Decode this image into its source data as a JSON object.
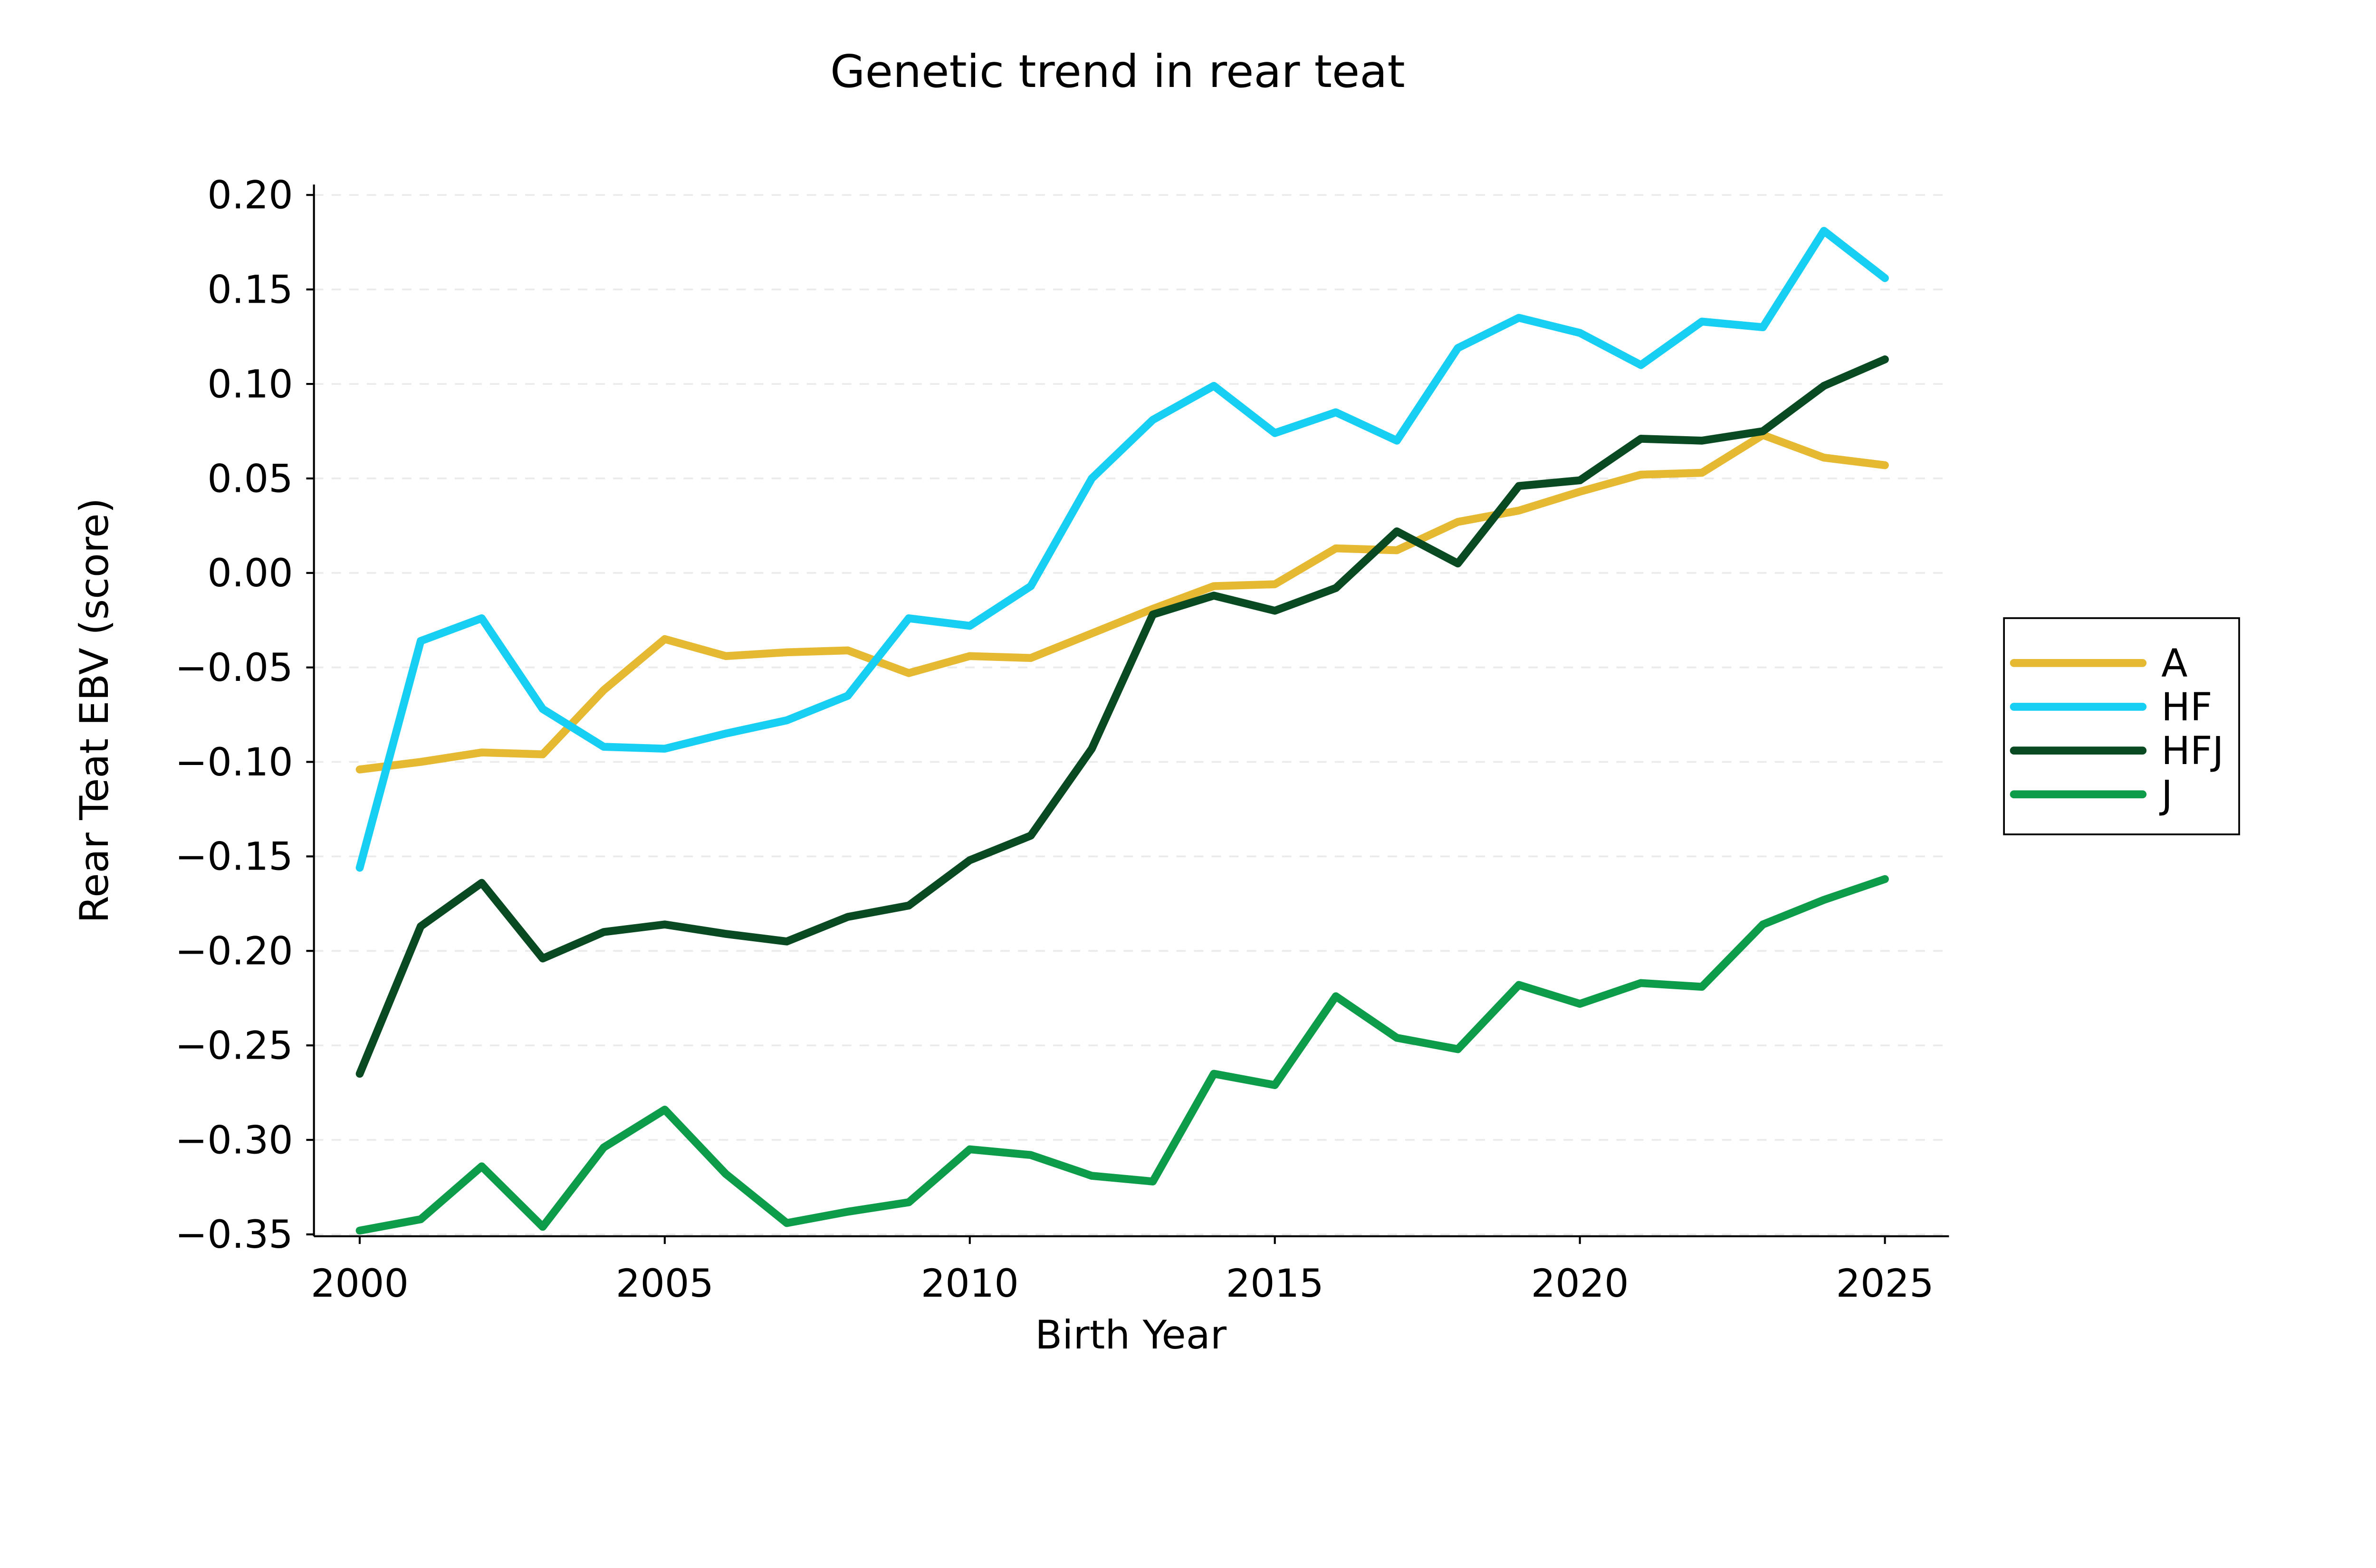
{
  "title": "Genetic trend in rear teat",
  "chart_data": {
    "type": "line",
    "title": "Genetic trend in rear teat",
    "xlabel": "Birth Year",
    "ylabel": "Rear Teat EBV (score)",
    "grid": "horizontal-dashed",
    "legend_position": "right-outside",
    "background_color": "#ffffff",
    "axis_color": "#000000",
    "grid_color": "#ebebeb",
    "xlim": [
      1999.25,
      2026.05
    ],
    "ylim": [
      -0.351,
      0.2055
    ],
    "x_ticks": [
      2000,
      2005,
      2010,
      2015,
      2020,
      2025
    ],
    "x_tick_labels": [
      "2000",
      "2005",
      "2010",
      "2015",
      "2020",
      "2025"
    ],
    "y_ticks": [
      0.2,
      0.15,
      0.1,
      0.05,
      0.0,
      -0.05,
      -0.1,
      -0.15,
      -0.2,
      -0.25,
      -0.3,
      -0.35
    ],
    "y_tick_labels": [
      "0.20",
      "0.15",
      "0.10",
      "0.05",
      "0.00",
      "−0.05",
      "−0.10",
      "−0.15",
      "−0.20",
      "−0.25",
      "−0.30",
      "−0.35"
    ],
    "x": [
      2000,
      2001,
      2002,
      2003,
      2004,
      2005,
      2006,
      2007,
      2008,
      2009,
      2010,
      2011,
      2012,
      2013,
      2014,
      2015,
      2016,
      2017,
      2018,
      2019,
      2020,
      2021,
      2022,
      2023,
      2024,
      2025
    ],
    "series": [
      {
        "name": "A",
        "color": "#E6B932",
        "values": [
          -0.104,
          -0.1,
          -0.095,
          -0.096,
          -0.062,
          -0.035,
          -0.044,
          -0.042,
          -0.041,
          -0.053,
          -0.044,
          -0.045,
          -0.032,
          -0.019,
          -0.007,
          -0.006,
          0.013,
          0.012,
          0.027,
          0.033,
          0.043,
          0.052,
          0.053,
          0.073,
          0.061,
          0.057
        ]
      },
      {
        "name": "HF",
        "color": "#17CFF2",
        "values": [
          -0.156,
          -0.036,
          -0.024,
          -0.072,
          -0.092,
          -0.093,
          -0.085,
          -0.078,
          -0.065,
          -0.024,
          -0.028,
          -0.007,
          0.05,
          0.081,
          0.099,
          0.074,
          0.085,
          0.07,
          0.119,
          0.135,
          0.127,
          0.11,
          0.133,
          0.13,
          0.181,
          0.156
        ]
      },
      {
        "name": "HFJ",
        "color": "#094A22",
        "values": [
          -0.265,
          -0.187,
          -0.164,
          -0.204,
          -0.19,
          -0.186,
          -0.191,
          -0.195,
          -0.182,
          -0.176,
          -0.152,
          -0.139,
          -0.093,
          -0.022,
          -0.012,
          -0.02,
          -0.008,
          0.022,
          0.005,
          0.046,
          0.049,
          0.071,
          0.07,
          0.075,
          0.099,
          0.113
        ]
      },
      {
        "name": "J",
        "color": "#0C9C4A",
        "values": [
          -0.348,
          -0.342,
          -0.314,
          -0.346,
          -0.304,
          -0.284,
          -0.318,
          -0.344,
          -0.338,
          -0.333,
          -0.305,
          -0.308,
          -0.319,
          -0.322,
          -0.265,
          -0.271,
          -0.224,
          -0.246,
          -0.252,
          -0.218,
          -0.228,
          -0.217,
          -0.219,
          -0.186,
          -0.173,
          -0.162
        ]
      }
    ]
  }
}
